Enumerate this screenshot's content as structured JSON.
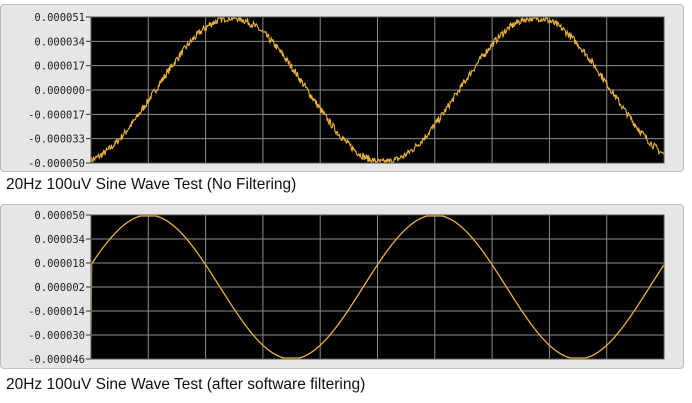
{
  "chart_data": [
    {
      "type": "line",
      "caption": "20Hz 100uV Sine Wave Test (No Filtering)",
      "y_ticks": [
        "0.000051",
        "0.000034",
        "0.000017",
        "0.000000",
        "-0.000017",
        "-0.000033",
        "-0.000050"
      ],
      "ylim": [
        -5e-05,
        5.1e-05
      ],
      "grid": true,
      "grid_columns": 10,
      "noisy": true,
      "series": [
        {
          "color": "#e8b23a",
          "peaks_x_fraction": [
            0.245,
            0.775
          ],
          "troughs_x_fraction": [
            0.51,
            1.0
          ],
          "amplitude": 5e-05,
          "noise_amplitude": 2.5e-06
        }
      ],
      "background": "#000000",
      "grid_color": "#8c8c8c"
    },
    {
      "type": "line",
      "caption": "20Hz 100uV Sine Wave Test (after software filtering)",
      "y_ticks": [
        "0.000050",
        "0.000034",
        "0.000018",
        "0.000002",
        "-0.000014",
        "-0.000030",
        "-0.000046"
      ],
      "ylim": [
        -4.6e-05,
        5e-05
      ],
      "grid": true,
      "grid_columns": 10,
      "noisy": false,
      "series": [
        {
          "color": "#e8b23a",
          "peaks_x_fraction": [
            0.1,
            0.6
          ],
          "troughs_x_fraction": [
            0.35,
            0.85
          ],
          "amplitude": 4.8e-05,
          "noise_amplitude": 0
        }
      ],
      "background": "#000000",
      "grid_color": "#8c8c8c"
    }
  ]
}
